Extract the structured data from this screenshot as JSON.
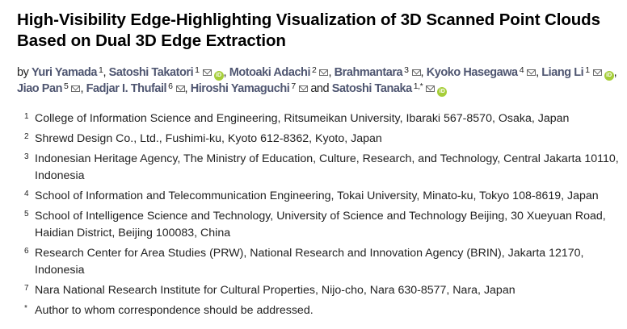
{
  "title": "High-Visibility Edge-Highlighting Visualization of 3D Scanned Point Clouds Based on Dual 3D Edge Extraction",
  "by_label": "by",
  "and_label": "and",
  "orcid_label": "iD",
  "colors": {
    "author": "#4f5671",
    "orcid": "#a6ce39"
  },
  "authors": [
    {
      "name": "Yuri Yamada",
      "aff": "1",
      "email": false,
      "orcid": false
    },
    {
      "name": "Satoshi Takatori",
      "aff": "1",
      "email": true,
      "orcid": true
    },
    {
      "name": "Motoaki Adachi",
      "aff": "2",
      "email": true,
      "orcid": false
    },
    {
      "name": "Brahmantara",
      "aff": "3",
      "email": true,
      "orcid": false
    },
    {
      "name": "Kyoko Hasegawa",
      "aff": "4",
      "email": true,
      "orcid": false
    },
    {
      "name": "Liang Li",
      "aff": "1",
      "email": true,
      "orcid": true
    },
    {
      "name": "Jiao Pan",
      "aff": "5",
      "email": true,
      "orcid": false
    },
    {
      "name": "Fadjar I. Thufail",
      "aff": "6",
      "email": true,
      "orcid": false
    },
    {
      "name": "Hiroshi Yamaguchi",
      "aff": "7",
      "email": true,
      "orcid": false
    },
    {
      "name": "Satoshi Tanaka",
      "aff": "1,*",
      "email": true,
      "orcid": true
    }
  ],
  "affiliations": [
    {
      "num": "1",
      "text": "College of Information Science and Engineering, Ritsumeikan University, Ibaraki 567-8570, Osaka, Japan"
    },
    {
      "num": "2",
      "text": "Shrewd Design Co., Ltd., Fushimi-ku, Kyoto 612-8362, Kyoto, Japan"
    },
    {
      "num": "3",
      "text": "Indonesian Heritage Agency, The Ministry of Education, Culture, Research, and Technology, Central Jakarta 10110, Indonesia"
    },
    {
      "num": "4",
      "text": "School of Information and Telecommunication Engineering, Tokai University, Minato-ku, Tokyo 108-8619, Japan"
    },
    {
      "num": "5",
      "text": "School of Intelligence Science and Technology, University of Science and Technology Beijing, 30 Xueyuan Road, Haidian District, Beijing 100083, China"
    },
    {
      "num": "6",
      "text": "Research Center for Area Studies (PRW), National Research and Innovation Agency (BRIN), Jakarta 12170, Indonesia"
    },
    {
      "num": "7",
      "text": "Nara National Research Institute for Cultural Properties, Nijo-cho, Nara 630-8577, Nara, Japan"
    },
    {
      "num": "*",
      "text": "Author to whom correspondence should be addressed."
    }
  ]
}
